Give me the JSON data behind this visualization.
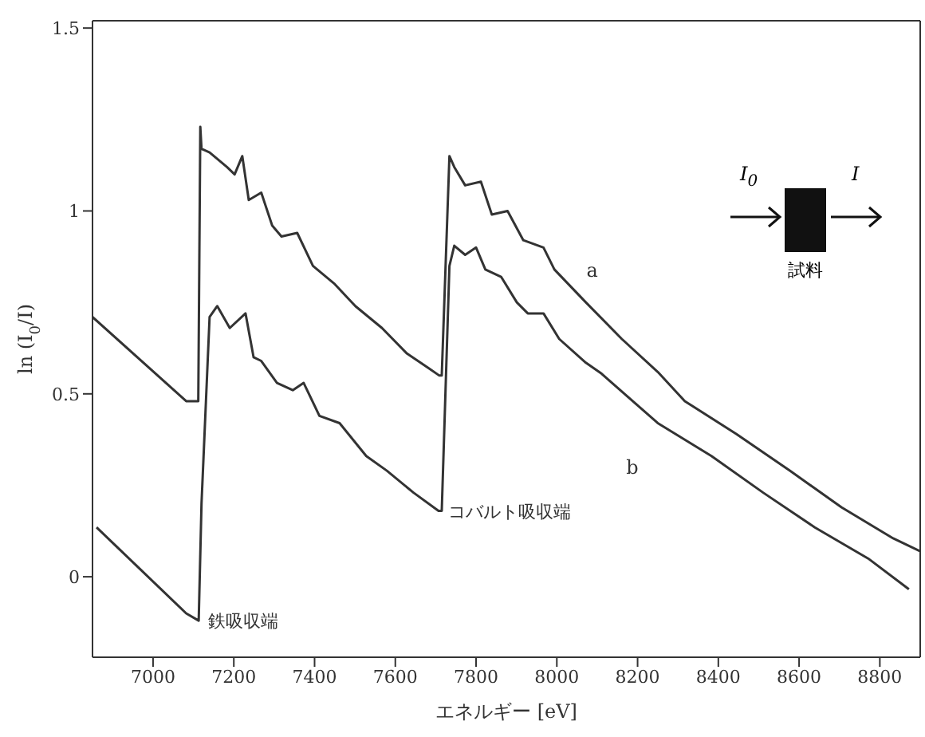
{
  "chart_data": {
    "type": "line",
    "xlabel": "エネルギー [eV]",
    "ylabel": "ln (I$_{0}$/I)",
    "xlim": [
      6850,
      8900
    ],
    "xticks": [
      7000,
      7200,
      7400,
      7600,
      7800,
      8000,
      8200,
      8400,
      8600,
      8800
    ],
    "ylim": [
      -0.22,
      1.52
    ],
    "yticks": [
      0,
      0.5,
      1,
      1.5
    ],
    "series": [
      {
        "name": "a",
        "color": "#333333",
        "x": [
          6850,
          7082,
          7112,
          7117,
          7120,
          7140,
          7183,
          7202,
          7221,
          7237,
          7268,
          7295,
          7318,
          7357,
          7396,
          7450,
          7501,
          7567,
          7629,
          7683,
          7709,
          7715,
          7734,
          7746,
          7773,
          7812,
          7839,
          7878,
          7917,
          7967,
          7994,
          8072,
          8161,
          8250,
          8317,
          8445,
          8577,
          8705,
          8833,
          8899
        ],
        "values": [
          0.71,
          0.48,
          0.48,
          1.23,
          1.17,
          1.16,
          1.12,
          1.1,
          1.15,
          1.03,
          1.05,
          0.96,
          0.93,
          0.94,
          0.85,
          0.8,
          0.74,
          0.68,
          0.61,
          0.57,
          0.55,
          0.55,
          1.15,
          1.12,
          1.07,
          1.08,
          0.99,
          1.0,
          0.92,
          0.9,
          0.84,
          0.75,
          0.65,
          0.56,
          0.48,
          0.39,
          0.29,
          0.19,
          0.105,
          0.07
        ]
      },
      {
        "name": "b",
        "color": "#333333",
        "x": [
          6860,
          7082,
          7113,
          7120,
          7140,
          7159,
          7190,
          7229,
          7249,
          7268,
          7307,
          7346,
          7373,
          7412,
          7462,
          7528,
          7579,
          7645,
          7707,
          7715,
          7734,
          7746,
          7773,
          7800,
          7823,
          7862,
          7901,
          7928,
          7967,
          8006,
          8072,
          8111,
          8250,
          8383,
          8511,
          8639,
          8771,
          8872
        ],
        "values": [
          0.135,
          -0.1,
          -0.12,
          0.2,
          0.71,
          0.74,
          0.68,
          0.72,
          0.6,
          0.59,
          0.53,
          0.51,
          0.53,
          0.44,
          0.42,
          0.33,
          0.29,
          0.23,
          0.18,
          0.18,
          0.85,
          0.905,
          0.88,
          0.9,
          0.84,
          0.82,
          0.75,
          0.72,
          0.72,
          0.65,
          0.585,
          0.555,
          0.42,
          0.33,
          0.23,
          0.135,
          0.05,
          -0.034
        ]
      }
    ],
    "annotations": [
      "I$_{0}$",
      "I",
      "試料",
      {
        "text": "コバルト吸収端",
        "x": 7707,
        "y": 0.18
      },
      {
        "text": "鉄吸収端",
        "x": 7113,
        "y": -0.12
      }
    ]
  }
}
